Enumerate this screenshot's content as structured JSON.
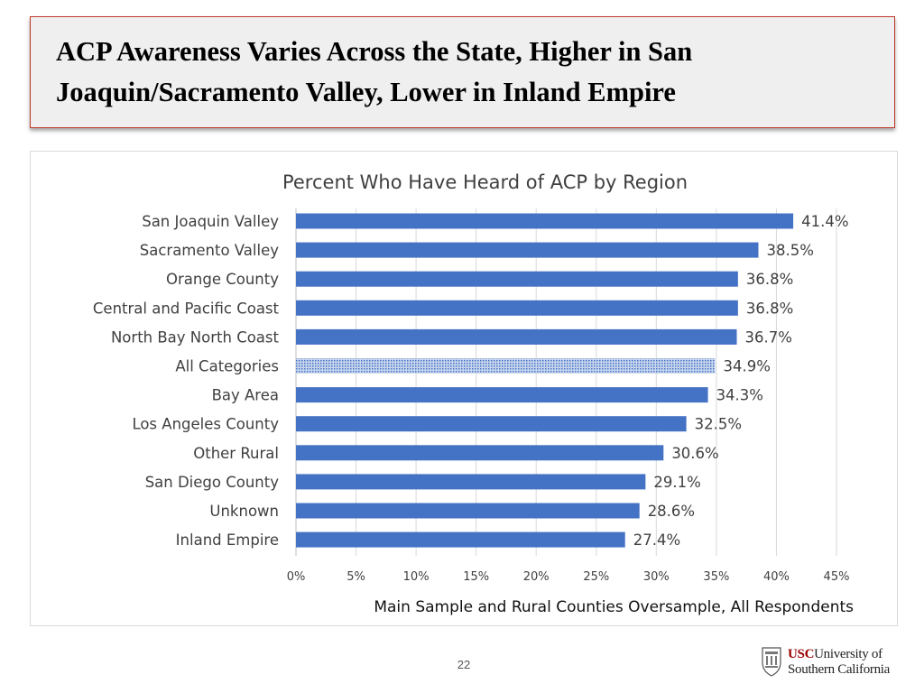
{
  "slide": {
    "title": "ACP Awareness Varies Across the State, Higher in San Joaquin/Sacramento Valley, Lower in Inland Empire",
    "page_number": "22"
  },
  "logo": {
    "usc": "USC",
    "line1_rest": "University of",
    "line2": "Southern California"
  },
  "colors": {
    "bar": "#4472C4",
    "highlight_bar": "#9DB3DA",
    "title_border": "#C0392B",
    "grid": "#D9D9D9",
    "text": "#404040"
  },
  "chart_data": {
    "type": "bar",
    "orientation": "horizontal",
    "title": "Percent Who Have Heard of ACP by Region",
    "xlabel": "Main Sample and Rural Counties Oversample, All Respondents",
    "ylabel": "",
    "categories": [
      "San Joaquin Valley",
      "Sacramento Valley",
      "Orange County",
      "Central and Pacific Coast",
      "North Bay North Coast",
      "All Categories",
      "Bay Area",
      "Los Angeles County",
      "Other Rural",
      "San Diego County",
      "Unknown",
      "Inland Empire"
    ],
    "values": [
      41.4,
      38.5,
      36.8,
      36.8,
      36.7,
      34.9,
      34.3,
      32.5,
      30.6,
      29.1,
      28.6,
      27.4
    ],
    "data_labels": [
      "41.4%",
      "38.5%",
      "36.8%",
      "36.8%",
      "36.7%",
      "34.9%",
      "34.3%",
      "32.5%",
      "30.6%",
      "29.1%",
      "28.6%",
      "27.4%"
    ],
    "highlight_category": "All Categories",
    "xlim": [
      0,
      45
    ],
    "xticks": [
      0,
      5,
      10,
      15,
      20,
      25,
      30,
      35,
      40,
      45
    ],
    "xtick_labels": [
      "0%",
      "5%",
      "10%",
      "15%",
      "20%",
      "25%",
      "30%",
      "35%",
      "40%",
      "45%"
    ],
    "grid": true
  }
}
